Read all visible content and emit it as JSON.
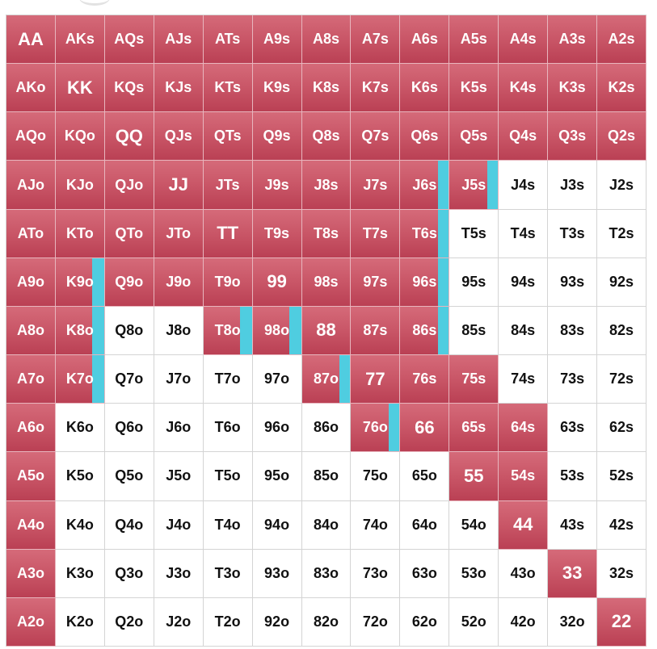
{
  "grid": {
    "ranks": [
      "A",
      "K",
      "Q",
      "J",
      "T",
      "9",
      "8",
      "7",
      "6",
      "5",
      "4",
      "3",
      "2"
    ],
    "colors": {
      "raise": "#c95667",
      "mix": "#4fcde0",
      "fold": "#ffffff"
    },
    "rows": [
      [
        "AA",
        "AKs",
        "AQs",
        "AJs",
        "ATs",
        "A9s",
        "A8s",
        "A7s",
        "A6s",
        "A5s",
        "A4s",
        "A3s",
        "A2s"
      ],
      [
        "AKo",
        "KK",
        "KQs",
        "KJs",
        "KTs",
        "K9s",
        "K8s",
        "K7s",
        "K6s",
        "K5s",
        "K4s",
        "K3s",
        "K2s"
      ],
      [
        "AQo",
        "KQo",
        "QQ",
        "QJs",
        "QTs",
        "Q9s",
        "Q8s",
        "Q7s",
        "Q6s",
        "Q5s",
        "Q4s",
        "Q3s",
        "Q2s"
      ],
      [
        "AJo",
        "KJo",
        "QJo",
        "JJ",
        "JTs",
        "J9s",
        "J8s",
        "J7s",
        "J6s",
        "J5s",
        "J4s",
        "J3s",
        "J2s"
      ],
      [
        "ATo",
        "KTo",
        "QTo",
        "JTo",
        "TT",
        "T9s",
        "T8s",
        "T7s",
        "T6s",
        "T5s",
        "T4s",
        "T3s",
        "T2s"
      ],
      [
        "A9o",
        "K9o",
        "Q9o",
        "J9o",
        "T9o",
        "99",
        "98s",
        "97s",
        "96s",
        "95s",
        "94s",
        "93s",
        "92s"
      ],
      [
        "A8o",
        "K8o",
        "Q8o",
        "J8o",
        "T8o",
        "98o",
        "88",
        "87s",
        "86s",
        "85s",
        "84s",
        "83s",
        "82s"
      ],
      [
        "A7o",
        "K7o",
        "Q7o",
        "J7o",
        "T7o",
        "97o",
        "87o",
        "77",
        "76s",
        "75s",
        "74s",
        "73s",
        "72s"
      ],
      [
        "A6o",
        "K6o",
        "Q6o",
        "J6o",
        "T6o",
        "96o",
        "86o",
        "76o",
        "66",
        "65s",
        "64s",
        "63s",
        "62s"
      ],
      [
        "A5o",
        "K5o",
        "Q5o",
        "J5o",
        "T5o",
        "95o",
        "85o",
        "75o",
        "65o",
        "55",
        "54s",
        "53s",
        "52s"
      ],
      [
        "A4o",
        "K4o",
        "Q4o",
        "J4o",
        "T4o",
        "94o",
        "84o",
        "74o",
        "64o",
        "54o",
        "44",
        "43s",
        "42s"
      ],
      [
        "A3o",
        "K3o",
        "Q3o",
        "J3o",
        "T3o",
        "93o",
        "83o",
        "73o",
        "63o",
        "53o",
        "43o",
        "33",
        "32s"
      ],
      [
        "A2o",
        "K2o",
        "Q2o",
        "J2o",
        "T2o",
        "92o",
        "82o",
        "72o",
        "62o",
        "52o",
        "42o",
        "32o",
        "22"
      ]
    ],
    "raise_count_per_row": [
      13,
      13,
      13,
      10,
      9,
      9,
      2,
      2,
      1,
      1,
      1,
      1,
      1
    ],
    "extra_raise": [
      "T8o",
      "98o",
      "88",
      "87s",
      "86s",
      "87o",
      "77",
      "76s",
      "75s",
      "76o",
      "66",
      "65s",
      "64s",
      "55",
      "54s",
      "44",
      "33",
      "22"
    ],
    "mixed_hands": [
      {
        "hand": "J6s",
        "mix_fraction": 0.22
      },
      {
        "hand": "J5s",
        "mix_fraction": 0.22
      },
      {
        "hand": "T6s",
        "mix_fraction": 0.22
      },
      {
        "hand": "K9o",
        "mix_fraction": 0.25
      },
      {
        "hand": "96s",
        "mix_fraction": 0.22
      },
      {
        "hand": "K8o",
        "mix_fraction": 0.25
      },
      {
        "hand": "T8o",
        "mix_fraction": 0.25
      },
      {
        "hand": "98o",
        "mix_fraction": 0.25
      },
      {
        "hand": "86s",
        "mix_fraction": 0.22
      },
      {
        "hand": "K7o",
        "mix_fraction": 0.25
      },
      {
        "hand": "87o",
        "mix_fraction": 0.22
      },
      {
        "hand": "76o",
        "mix_fraction": 0.22
      }
    ]
  }
}
